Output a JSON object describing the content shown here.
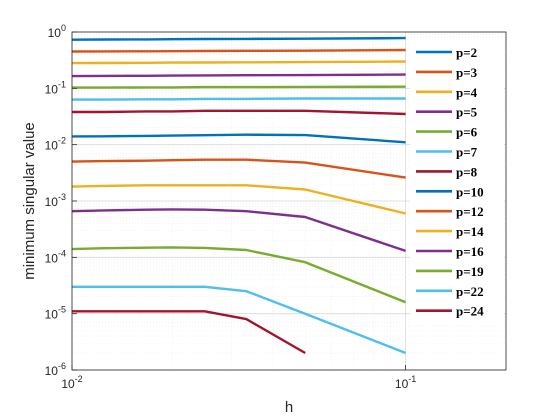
{
  "chart_data": {
    "type": "line",
    "xlabel": "h",
    "ylabel": "minimum singular value",
    "xscale": "log",
    "yscale": "log",
    "xlim": [
      0.01,
      0.2
    ],
    "ylim": [
      1e-06,
      1
    ],
    "grid": true,
    "minor_grid": true,
    "legend_position": "top-right",
    "x_ticks": [
      {
        "value": 0.01,
        "base": "10",
        "exp": "-2"
      },
      {
        "value": 0.1,
        "base": "10",
        "exp": "-1"
      }
    ],
    "y_ticks": [
      {
        "value": 1e-06,
        "base": "10",
        "exp": "-6"
      },
      {
        "value": 1e-05,
        "base": "10",
        "exp": "-5"
      },
      {
        "value": 0.0001,
        "base": "10",
        "exp": "-4"
      },
      {
        "value": 0.001,
        "base": "10",
        "exp": "-3"
      },
      {
        "value": 0.01,
        "base": "10",
        "exp": "-2"
      },
      {
        "value": 0.1,
        "base": "10",
        "exp": "-1"
      },
      {
        "value": 1,
        "base": "10",
        "exp": "0"
      }
    ],
    "series": [
      {
        "name": "p=2",
        "color": "#0072BD",
        "x": [
          0.01,
          0.0125,
          0.0167,
          0.02,
          0.025,
          0.0333,
          0.05,
          0.1
        ],
        "y": [
          0.73,
          0.735,
          0.74,
          0.745,
          0.75,
          0.755,
          0.76,
          0.78
        ]
      },
      {
        "name": "p=3",
        "color": "#D95319",
        "x": [
          0.01,
          0.0125,
          0.0167,
          0.02,
          0.025,
          0.0333,
          0.05,
          0.1
        ],
        "y": [
          0.45,
          0.452,
          0.455,
          0.457,
          0.46,
          0.463,
          0.466,
          0.48
        ]
      },
      {
        "name": "p=4",
        "color": "#EDB120",
        "x": [
          0.01,
          0.0125,
          0.0167,
          0.02,
          0.025,
          0.0333,
          0.05,
          0.1
        ],
        "y": [
          0.28,
          0.282,
          0.284,
          0.286,
          0.288,
          0.29,
          0.292,
          0.3
        ]
      },
      {
        "name": "p=5",
        "color": "#7E2F8E",
        "x": [
          0.01,
          0.0125,
          0.0167,
          0.02,
          0.025,
          0.0333,
          0.05,
          0.1
        ],
        "y": [
          0.165,
          0.166,
          0.167,
          0.168,
          0.17,
          0.171,
          0.172,
          0.175
        ]
      },
      {
        "name": "p=6",
        "color": "#77AC30",
        "x": [
          0.01,
          0.0125,
          0.0167,
          0.02,
          0.025,
          0.0333,
          0.05,
          0.1
        ],
        "y": [
          0.103,
          0.103,
          0.104,
          0.104,
          0.105,
          0.105,
          0.106,
          0.107
        ]
      },
      {
        "name": "p=7",
        "color": "#4DBEEE",
        "x": [
          0.01,
          0.0125,
          0.0167,
          0.02,
          0.025,
          0.0333,
          0.05,
          0.1
        ],
        "y": [
          0.063,
          0.063,
          0.064,
          0.064,
          0.065,
          0.065,
          0.066,
          0.066
        ]
      },
      {
        "name": "p=8",
        "color": "#A2142F",
        "x": [
          0.01,
          0.0125,
          0.0167,
          0.02,
          0.025,
          0.0333,
          0.05,
          0.1
        ],
        "y": [
          0.038,
          0.038,
          0.039,
          0.039,
          0.04,
          0.04,
          0.04,
          0.035
        ]
      },
      {
        "name": "p=10",
        "color": "#0072BD",
        "x": [
          0.01,
          0.0125,
          0.0167,
          0.02,
          0.025,
          0.0333,
          0.05,
          0.1
        ],
        "y": [
          0.014,
          0.0141,
          0.0143,
          0.0145,
          0.0147,
          0.015,
          0.0148,
          0.011
        ]
      },
      {
        "name": "p=12",
        "color": "#D95319",
        "x": [
          0.01,
          0.0125,
          0.0167,
          0.02,
          0.025,
          0.0333,
          0.05,
          0.1
        ],
        "y": [
          0.005,
          0.0051,
          0.0052,
          0.0053,
          0.0054,
          0.0054,
          0.0048,
          0.0026
        ]
      },
      {
        "name": "p=14",
        "color": "#EDB120",
        "x": [
          0.01,
          0.0125,
          0.0167,
          0.02,
          0.025,
          0.0333,
          0.05,
          0.1
        ],
        "y": [
          0.0018,
          0.00185,
          0.0019,
          0.0019,
          0.0019,
          0.0019,
          0.0016,
          0.0006
        ]
      },
      {
        "name": "p=16",
        "color": "#7E2F8E",
        "x": [
          0.01,
          0.0125,
          0.0167,
          0.02,
          0.025,
          0.0333,
          0.05,
          0.1
        ],
        "y": [
          0.00066,
          0.00068,
          0.0007,
          0.00071,
          0.0007,
          0.00066,
          0.00052,
          0.00013
        ]
      },
      {
        "name": "p=19",
        "color": "#77AC30",
        "x": [
          0.01,
          0.0125,
          0.0167,
          0.02,
          0.025,
          0.0333,
          0.05,
          0.1
        ],
        "y": [
          0.00014,
          0.000145,
          0.000148,
          0.00015,
          0.000147,
          0.000135,
          8.2e-05,
          1.6e-05
        ]
      },
      {
        "name": "p=22",
        "color": "#4DBEEE",
        "x": [
          0.01,
          0.0125,
          0.0167,
          0.02,
          0.025,
          0.0333,
          0.05,
          0.1
        ],
        "y": [
          3e-05,
          3e-05,
          3e-05,
          3e-05,
          3e-05,
          2.5e-05,
          1e-05,
          2e-06
        ]
      },
      {
        "name": "p=24",
        "color": "#A2142F",
        "x": [
          0.01,
          0.0125,
          0.0167,
          0.02,
          0.025,
          0.0333,
          0.05
        ],
        "y": [
          1.1e-05,
          1.1e-05,
          1.1e-05,
          1.1e-05,
          1.1e-05,
          8e-06,
          2e-06
        ]
      }
    ]
  }
}
